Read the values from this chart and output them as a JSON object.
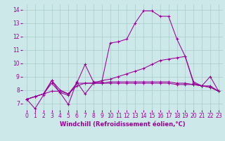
{
  "xlabel": "Windchill (Refroidissement éolien,°C)",
  "x": [
    0,
    1,
    2,
    3,
    4,
    5,
    6,
    7,
    8,
    9,
    10,
    11,
    12,
    13,
    14,
    15,
    16,
    17,
    18,
    19,
    20,
    21,
    22,
    23
  ],
  "series": [
    [
      7.3,
      6.6,
      7.6,
      8.7,
      7.8,
      6.9,
      8.6,
      7.7,
      8.5,
      8.5,
      8.5,
      8.5,
      8.5,
      8.5,
      8.5,
      8.5,
      8.5,
      8.5,
      8.4,
      8.4,
      8.4,
      8.3,
      8.2,
      7.9
    ],
    [
      7.3,
      7.5,
      7.7,
      7.9,
      7.9,
      7.7,
      8.3,
      8.5,
      8.5,
      8.7,
      8.8,
      9.0,
      9.2,
      9.4,
      9.6,
      9.9,
      10.2,
      10.3,
      10.4,
      10.5,
      8.6,
      8.3,
      8.3,
      7.9
    ],
    [
      7.3,
      7.5,
      7.7,
      8.7,
      8.0,
      7.7,
      8.5,
      9.9,
      8.6,
      8.6,
      11.5,
      11.6,
      11.8,
      13.0,
      13.9,
      13.9,
      13.5,
      13.5,
      11.8,
      10.5,
      8.5,
      8.3,
      9.0,
      7.9
    ],
    [
      7.3,
      7.5,
      7.7,
      8.5,
      7.8,
      7.6,
      8.5,
      8.5,
      8.5,
      8.5,
      8.6,
      8.6,
      8.6,
      8.6,
      8.6,
      8.6,
      8.6,
      8.6,
      8.5,
      8.5,
      8.4,
      8.3,
      8.2,
      7.9
    ]
  ],
  "line_color": "#990099",
  "bg_color": "#cce8e8",
  "grid_color": "#aacccc",
  "ylim": [
    6.5,
    14.4
  ],
  "yticks": [
    7,
    8,
    9,
    10,
    11,
    12,
    13,
    14
  ],
  "xticks": [
    0,
    1,
    2,
    3,
    4,
    5,
    6,
    7,
    8,
    9,
    10,
    11,
    12,
    13,
    14,
    15,
    16,
    17,
    18,
    19,
    20,
    21,
    22,
    23
  ],
  "tick_fontsize": 5.5,
  "label_fontsize": 6.0
}
